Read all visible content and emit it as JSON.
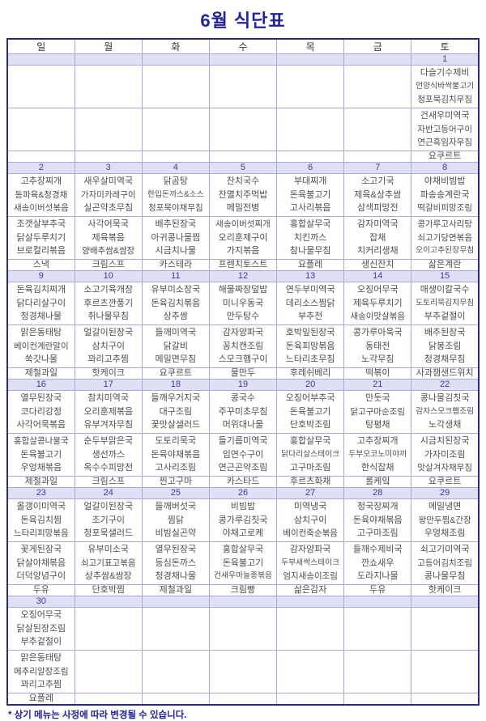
{
  "title": "6월 식단표",
  "footer": "* 상기 메뉴는 사정에 따라 변경될 수 있습니다.",
  "days": [
    "일",
    "월",
    "화",
    "수",
    "목",
    "금",
    "토"
  ],
  "weeks": [
    {
      "dates": [
        "",
        "",
        "",
        "",
        "",
        "",
        "1"
      ],
      "lunch": [
        [],
        [],
        [],
        [],
        [],
        [],
        [
          "다슬기수제비",
          "언양식바싹불고기",
          "청포묵김치무침"
        ]
      ],
      "dinner": [
        [],
        [],
        [],
        [],
        [],
        [],
        [
          "건새우미역국",
          "자반고등어구이",
          "연근흑임자무침"
        ]
      ],
      "snack": [
        "",
        "",
        "",
        "",
        "",
        "",
        "요쿠르트"
      ]
    },
    {
      "dates": [
        "2",
        "3",
        "4",
        "5",
        "6",
        "7",
        "8"
      ],
      "lunch": [
        [
          "고추장찌개",
          "동파육&청경채",
          "새송이버섯볶음"
        ],
        [
          "새우살미역국",
          "가자미카레구이",
          "실곤약초무침"
        ],
        [
          "닭곰탕",
          "한입돈까스&소스",
          "청포묵야채무침"
        ],
        [
          "잔치국수",
          "잔멸치주먹밥",
          "메밀전병"
        ],
        [
          "부대찌개",
          "돈육불고기",
          "고사리볶음"
        ],
        [
          "소고기국",
          "제육&상추쌈",
          "삼색피망전"
        ],
        [
          "야채비빔밥",
          "파송송계란국",
          "떡갈비피망조림"
        ]
      ],
      "dinner": [
        [
          "조갯살부추국",
          "닭살두루치기",
          "브로컬리볶음"
        ],
        [
          "사각어묵국",
          "제육볶음",
          "양배추쌈&쌈장"
        ],
        [
          "배추된장국",
          "아귀콩나물찜",
          "시금치나물"
        ],
        [
          "새송이버섯찌개",
          "오리훈제구이",
          "가지볶음"
        ],
        [
          "홍합살무국",
          "치킨까스",
          "참나물무침"
        ],
        [
          "감자미역국",
          "잡채",
          "치커리생채"
        ],
        [
          "콩가루고사리탕",
          "쇠고기당면볶음",
          "오이고추된장무침"
        ]
      ],
      "snack": [
        "스낵",
        "크림스프",
        "카스테라",
        "프렌치토스트",
        "요플레",
        "생신잔치",
        "삶은계란"
      ]
    },
    {
      "dates": [
        "9",
        "10",
        "11",
        "12",
        "13",
        "14",
        "15"
      ],
      "lunch": [
        [
          "돈육김치찌개",
          "닭다리살구이",
          "청경채나물"
        ],
        [
          "소고기육개장",
          "후르츠깐풍기",
          "취나물무침"
        ],
        [
          "유부미소장국",
          "돈육김치볶음",
          "상추쌈"
        ],
        [
          "해물짜장덮밥",
          "미니우동국",
          "만두탕수"
        ],
        [
          "연두부미역국",
          "데리소스찜닭",
          "부추전"
        ],
        [
          "오징어무국",
          "제육두루치기",
          "새송이맛살볶음"
        ],
        [
          "매생이칼국수",
          "도토리묵김치무침",
          "부추겉절이"
        ]
      ],
      "dinner": [
        [
          "맑은동태탕",
          "베이컨계란말이",
          "쑥갓나물"
        ],
        [
          "얼갈이된장국",
          "삼치구이",
          "꽈리고추찜"
        ],
        [
          "들깨미역국",
          "닭갈비",
          "메밀면무침"
        ],
        [
          "감자양파국",
          "꽁치캔조림",
          "스모크햄구이"
        ],
        [
          "호박잎된장국",
          "돈육피망볶음",
          "느타리초무침"
        ],
        [
          "콩가루아욱국",
          "동태전",
          "노각무침"
        ],
        [
          "배추된장국",
          "닭봉조림",
          "청경채무침"
        ]
      ],
      "snack": [
        "제철과일",
        "핫케이크",
        "요쿠르트",
        "물만두",
        "후레쉬베리",
        "떡볶이",
        "사과잼샌드위치"
      ]
    },
    {
      "dates": [
        "16",
        "17",
        "18",
        "19",
        "20",
        "21",
        "22"
      ],
      "lunch": [
        [
          "열무된장국",
          "코다리강정",
          "사각어묵볶음"
        ],
        [
          "참치미역국",
          "오리훈제볶음",
          "유부겨자무침"
        ],
        [
          "들깨우거지국",
          "대구조림",
          "꽃맛살샐러드"
        ],
        [
          "콩국수",
          "주꾸미초무침",
          "머위대나물"
        ],
        [
          "오징어부추국",
          "돈육불고기",
          "단호박조림"
        ],
        [
          "만둣국",
          "닭고구마순조림",
          "탕평채"
        ],
        [
          "콩나물김칫국",
          "감자스모크햄조림",
          "노각생채"
        ]
      ],
      "dinner": [
        [
          "홍합살콩나물국",
          "돈육불고기",
          "우엉채볶음"
        ],
        [
          "순두부맑은국",
          "생선까스",
          "옥수수피망전"
        ],
        [
          "도토리묵국",
          "돈육야채볶음",
          "고사리조림"
        ],
        [
          "들기름미역국",
          "임연수구이",
          "연근곤약조림"
        ],
        [
          "홍합살무국",
          "닭다리살스테이크",
          "고구마조림"
        ],
        [
          "고추장찌개",
          "두부오코노미야끼",
          "한식잡채"
        ],
        [
          "시금치된장국",
          "가자미조림",
          "맛살겨자채무침"
        ]
      ],
      "snack": [
        "제철과일",
        "크림스프",
        "찐고구마",
        "카스타드",
        "후르츠화채",
        "롤케잌",
        "요쿠르트"
      ]
    },
    {
      "dates": [
        "23",
        "24",
        "25",
        "26",
        "27",
        "28",
        "29"
      ],
      "lunch": [
        [
          "올갱이미역국",
          "돈육김치찜",
          "느타리피망볶음"
        ],
        [
          "얼갈이된장국",
          "조기구이",
          "청포묵샐러드"
        ],
        [
          "들깨버섯국",
          "찜닭",
          "비빔실곤약"
        ],
        [
          "비빔밥",
          "콩가루김칫국",
          "야채고로케"
        ],
        [
          "미역냉국",
          "삼치구이",
          "베이컨죽순볶음"
        ],
        [
          "청국장찌개",
          "돈육야채볶음",
          "고구마조림"
        ],
        [
          "메밀냉면",
          "왕만두찜&간장",
          "우엉채조림"
        ]
      ],
      "dinner": [
        [
          "꽃게된장국",
          "닭살야채볶음",
          "더덕양념구이"
        ],
        [
          "유부미소국",
          "쇠고기표고볶음",
          "상추쌈&쌈장"
        ],
        [
          "열무된장국",
          "등심돈까스",
          "청경채나물"
        ],
        [
          "홍합살무국",
          "돈육불고기",
          "건새우마늘종볶음"
        ],
        [
          "감자양파국",
          "두부새싹스테이크",
          "엄지새송이조림"
        ],
        [
          "들깨수제비국",
          "깐쇼새우",
          "도라지나물"
        ],
        [
          "쇠고기미역국",
          "고등어김치조림",
          "콩나물무침"
        ]
      ],
      "snack": [
        "두유",
        "단호박찜",
        "제철과일",
        "크림빵",
        "삶은감자",
        "두유",
        "핫케이크"
      ]
    },
    {
      "dates": [
        "30",
        "",
        "",
        "",
        "",
        "",
        ""
      ],
      "lunch": [
        [
          "오징어무국",
          "닭살된장조림",
          "부추겉절이"
        ],
        [],
        [],
        [],
        [],
        [],
        []
      ],
      "dinner": [
        [
          "맑은동태탕",
          "메추리알장조림",
          "꽈리고추찜"
        ],
        [],
        [],
        [],
        [],
        [],
        []
      ],
      "snack": [
        "요플레",
        "",
        "",
        "",
        "",
        "",
        ""
      ]
    }
  ]
}
